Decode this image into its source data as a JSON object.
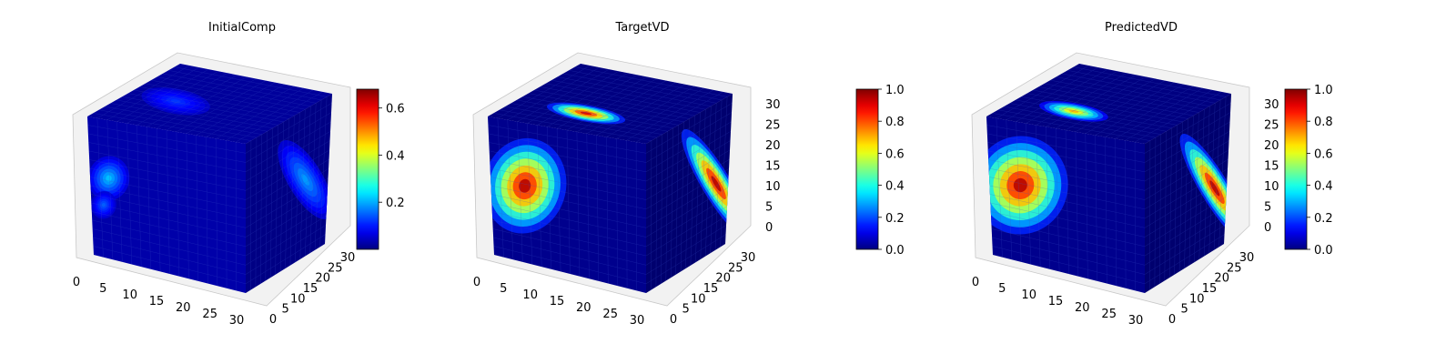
{
  "colors": {
    "background": "#ffffff",
    "pane": "#f2f2f2",
    "pane_grid": "#dcdcdc",
    "cube_base": "#0a1d9a",
    "voxel_grid": "#3a52c8"
  },
  "chart_data": [
    {
      "type": "heatmap",
      "subtype": "3d-voxel",
      "title": "InitialComp",
      "colormap": "jet",
      "x_ticks": [
        "0",
        "5",
        "10",
        "15",
        "20",
        "25",
        "30"
      ],
      "y_ticks": [
        "0",
        "5",
        "10",
        "15",
        "20",
        "25",
        "30"
      ],
      "z_ticks": [],
      "colorbar": {
        "min": 0.0,
        "max": 0.68,
        "ticks": [
          "0.2",
          "0.4",
          "0.6"
        ],
        "tick_values": [
          0.2,
          0.4,
          0.6
        ]
      },
      "regions": [
        {
          "face": "front",
          "u": 0.12,
          "v": 0.42,
          "ru": 0.13,
          "rv": 0.16,
          "value": 0.32
        },
        {
          "face": "front",
          "u": 0.08,
          "v": 0.62,
          "ru": 0.08,
          "rv": 0.1,
          "value": 0.22
        },
        {
          "face": "top",
          "u": 0.3,
          "v": 0.45,
          "ru": 0.22,
          "rv": 0.12,
          "value": 0.18
        },
        {
          "face": "side",
          "u": 0.72,
          "v": 0.48,
          "ru": 0.18,
          "rv": 0.3,
          "value": 0.28
        }
      ],
      "base_value": 0.06
    },
    {
      "type": "heatmap",
      "subtype": "3d-voxel",
      "title": "TargetVD",
      "colormap": "jet",
      "x_ticks": [
        "0",
        "5",
        "10",
        "15",
        "20",
        "25",
        "30"
      ],
      "y_ticks": [
        "0",
        "5",
        "10",
        "15",
        "20",
        "25",
        "30"
      ],
      "z_ticks": [
        "0",
        "5",
        "10",
        "15",
        "20",
        "25",
        "30"
      ],
      "colorbar": {
        "min": 0.0,
        "max": 1.0,
        "ticks": [
          "0.0",
          "0.2",
          "0.4",
          "0.6",
          "0.8",
          "1.0"
        ],
        "tick_values": [
          0.0,
          0.2,
          0.4,
          0.6,
          0.8,
          1.0
        ]
      },
      "regions": [
        {
          "face": "front",
          "u": 0.22,
          "v": 0.45,
          "ru": 0.26,
          "rv": 0.34,
          "value": 0.95
        },
        {
          "face": "top",
          "u": 0.45,
          "v": 0.3,
          "ru": 0.25,
          "rv": 0.08,
          "value": 0.92
        },
        {
          "face": "side",
          "u": 0.85,
          "v": 0.55,
          "ru": 0.3,
          "rv": 0.42,
          "value": 0.95
        }
      ],
      "base_value": 0.03
    },
    {
      "type": "heatmap",
      "subtype": "3d-voxel",
      "title": "PredictedVD",
      "colormap": "jet",
      "x_ticks": [
        "0",
        "5",
        "10",
        "15",
        "20",
        "25",
        "30"
      ],
      "y_ticks": [
        "0",
        "5",
        "10",
        "15",
        "20",
        "25",
        "30"
      ],
      "z_ticks": [
        "0",
        "5",
        "10",
        "15",
        "20",
        "25",
        "30"
      ],
      "colorbar": {
        "min": 0.0,
        "max": 1.0,
        "ticks": [
          "0.0",
          "0.2",
          "0.4",
          "0.6",
          "0.8",
          "1.0"
        ],
        "tick_values": [
          0.0,
          0.2,
          0.4,
          0.6,
          0.8,
          1.0
        ]
      },
      "regions": [
        {
          "face": "front",
          "u": 0.2,
          "v": 0.45,
          "ru": 0.3,
          "rv": 0.35,
          "value": 0.95
        },
        {
          "face": "top",
          "u": 0.38,
          "v": 0.3,
          "ru": 0.22,
          "rv": 0.08,
          "value": 0.7
        },
        {
          "face": "side",
          "u": 0.85,
          "v": 0.58,
          "ru": 0.28,
          "rv": 0.42,
          "value": 0.95
        }
      ],
      "base_value": 0.03
    }
  ]
}
